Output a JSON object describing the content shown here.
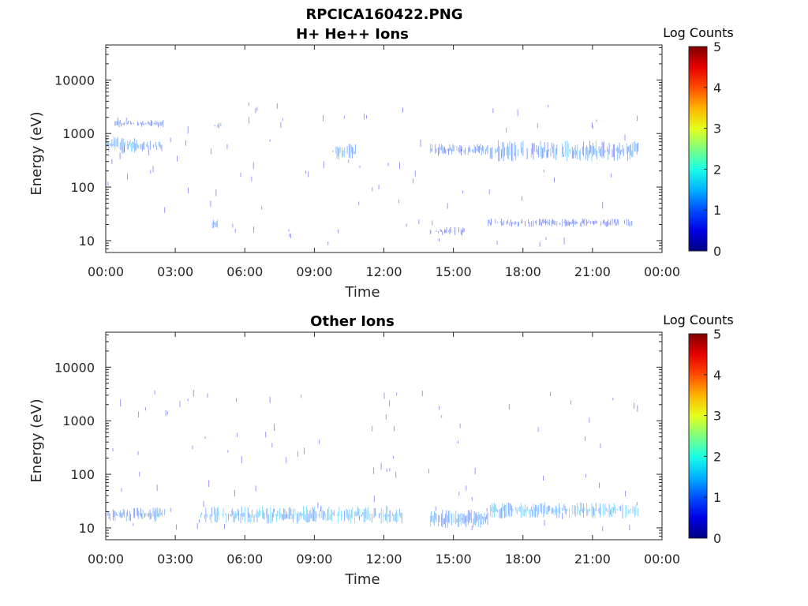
{
  "figure_title": "RPCICA160422.PNG",
  "chart_data": [
    {
      "type": "heatmap",
      "title": "H+ He++ Ions",
      "xlabel": "Time",
      "ylabel": "Energy (eV)",
      "yscale": "log",
      "ylim": [
        6,
        45000
      ],
      "xlim": [
        "00:00",
        "24:00"
      ],
      "xtick_labels": [
        "00:00",
        "03:00",
        "06:00",
        "09:00",
        "12:00",
        "15:00",
        "18:00",
        "21:00",
        "00:00"
      ],
      "ytick_labels": [
        "10",
        "100",
        "1000",
        "10000"
      ],
      "colorbar": {
        "label": "Log Counts",
        "range": [
          0,
          5
        ],
        "ticks": [
          "0",
          "1",
          "2",
          "3",
          "4",
          "5"
        ],
        "colormap": "jet"
      },
      "bands": [
        {
          "t_start": 0.0,
          "t_end": 1.4,
          "e_low": 420,
          "e_high": 900,
          "level": 1.1
        },
        {
          "t_start": 1.4,
          "t_end": 2.5,
          "e_low": 450,
          "e_high": 750,
          "level": 0.9
        },
        {
          "t_start": 0.4,
          "t_end": 2.5,
          "e_low": 1300,
          "e_high": 1800,
          "level": 0.7
        },
        {
          "t_start": 4.7,
          "t_end": 5.0,
          "e_low": 1200,
          "e_high": 1600,
          "level": 0.8
        },
        {
          "t_start": 4.6,
          "t_end": 4.9,
          "e_low": 17,
          "e_high": 25,
          "level": 1.0
        },
        {
          "t_start": 9.8,
          "t_end": 10.8,
          "e_low": 320,
          "e_high": 650,
          "level": 0.9
        },
        {
          "t_start": 14.0,
          "t_end": 16.5,
          "e_low": 380,
          "e_high": 650,
          "level": 0.8
        },
        {
          "t_start": 16.5,
          "t_end": 23.0,
          "e_low": 300,
          "e_high": 750,
          "level": 0.9
        },
        {
          "t_start": 16.5,
          "t_end": 22.7,
          "e_low": 18,
          "e_high": 26,
          "level": 0.6
        },
        {
          "t_start": 14.0,
          "t_end": 15.5,
          "e_low": 12,
          "e_high": 18,
          "level": 0.5
        }
      ]
    },
    {
      "type": "heatmap",
      "title": "Other Ions",
      "xlabel": "Time",
      "ylabel": "Energy (eV)",
      "yscale": "log",
      "ylim": [
        6,
        45000
      ],
      "xlim": [
        "00:00",
        "24:00"
      ],
      "xtick_labels": [
        "00:00",
        "03:00",
        "06:00",
        "09:00",
        "12:00",
        "15:00",
        "18:00",
        "21:00",
        "00:00"
      ],
      "ytick_labels": [
        "10",
        "100",
        "1000",
        "10000"
      ],
      "colorbar": {
        "label": "Log Counts",
        "range": [
          0,
          5
        ],
        "ticks": [
          "0",
          "1",
          "2",
          "3",
          "4",
          "5"
        ],
        "colormap": "jet"
      },
      "bands": [
        {
          "t_start": 0.05,
          "t_end": 2.55,
          "e_low": 13,
          "e_high": 24,
          "level": 0.9
        },
        {
          "t_start": 4.1,
          "t_end": 12.8,
          "e_low": 12,
          "e_high": 26,
          "level": 1.1
        },
        {
          "t_start": 14.0,
          "t_end": 16.5,
          "e_low": 10,
          "e_high": 22,
          "level": 0.9
        },
        {
          "t_start": 16.5,
          "t_end": 23.0,
          "e_low": 15,
          "e_high": 30,
          "level": 1.1
        }
      ]
    }
  ]
}
